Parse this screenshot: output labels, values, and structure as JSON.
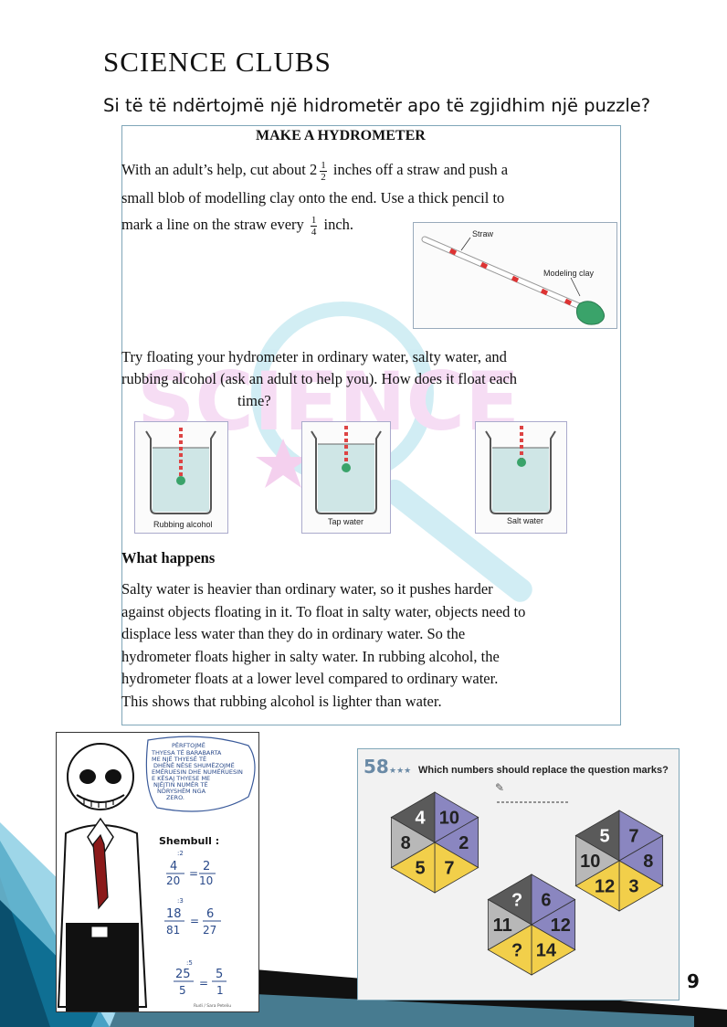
{
  "header": {
    "title": "SCIENCE  CLUBS",
    "subtitle": "Si të të ndërtojmë një hidrometër apo të zgjidhim një puzzle?"
  },
  "hydrometer": {
    "title": "MAKE A HYDROMETER",
    "intro_p1": "With an adult’s help, cut about 2",
    "intro_p1_after": " inches off a straw and push a",
    "intro_p2": "small blob of modelling clay onto the end. Use a thick pencil to",
    "intro_p3": "mark a line on the straw every",
    "intro_p3_after": " inch.",
    "frac_half_num": "1",
    "frac_half_den": "2",
    "frac_quarter_num": "1",
    "frac_quarter_den": "4",
    "straw_label": "Straw",
    "clay_label": "Modeling clay",
    "try_p1": "Try floating your hydrometer in ordinary water, salty water, and",
    "try_p2": "rubbing alcohol (ask an adult to help you). How does it float each",
    "try_p3": "time?",
    "beakers": [
      {
        "label": "Rubbing alcohol"
      },
      {
        "label": "Tap water"
      },
      {
        "label": "Salt water"
      }
    ],
    "happens_heading": "What happens",
    "happens_lines": [
      "Salty water is heavier than ordinary water, so it pushes harder",
      "against objects floating in it. To float in salty water, objects need to",
      "displace less water than they do in ordinary water. So the",
      "hydrometer floats higher in salty water. In rubbing alcohol, the",
      "hydrometer floats at a lower level compared to ordinary water.",
      "This shows that rubbing alcohol is lighter than water."
    ]
  },
  "cartoon": {
    "bubble_lines": [
      "PËRFTOJMË",
      "THYESA TË BARABARTA",
      "ME NJË THYESË TË",
      "DHËNË NËSE",
      "SHUMËZOJMË",
      "EMËRUESIN DHE NUMËRUESIN",
      "E KËSAJ THYESE ME",
      "NJËJTIN NUMËR TË",
      "NDRYSHËM NGA",
      "ZERO."
    ],
    "example_title": "Shembull :",
    "ex1": {
      "a": "4",
      "b": "20",
      "c": "2",
      "d": "10",
      "op": ":2"
    },
    "ex2": {
      "a": "18",
      "b": "81",
      "c": "6",
      "d": "27",
      "op": ":3"
    },
    "ex3": {
      "a": "25",
      "b": "5",
      "c": "5",
      "d": "1",
      "op": ":5"
    },
    "signature": "Rudi / Sara Peteliu"
  },
  "puzzle": {
    "number": "58",
    "stars": "★★★",
    "question": "Which numbers should replace the question marks?",
    "hex_left": [
      "4",
      "10",
      "2",
      "7",
      "5",
      "8"
    ],
    "hex_right": [
      "5",
      "7",
      "8",
      "3",
      "12",
      "10"
    ],
    "hex_bottom": [
      "?",
      "6",
      "12",
      "14",
      "?",
      "11"
    ],
    "colors": {
      "dark": "#5a5a5a",
      "purple": "#8a86c0",
      "yellow": "#f2cf4a",
      "grey": "#b8b8b8"
    }
  },
  "page_number": "9"
}
